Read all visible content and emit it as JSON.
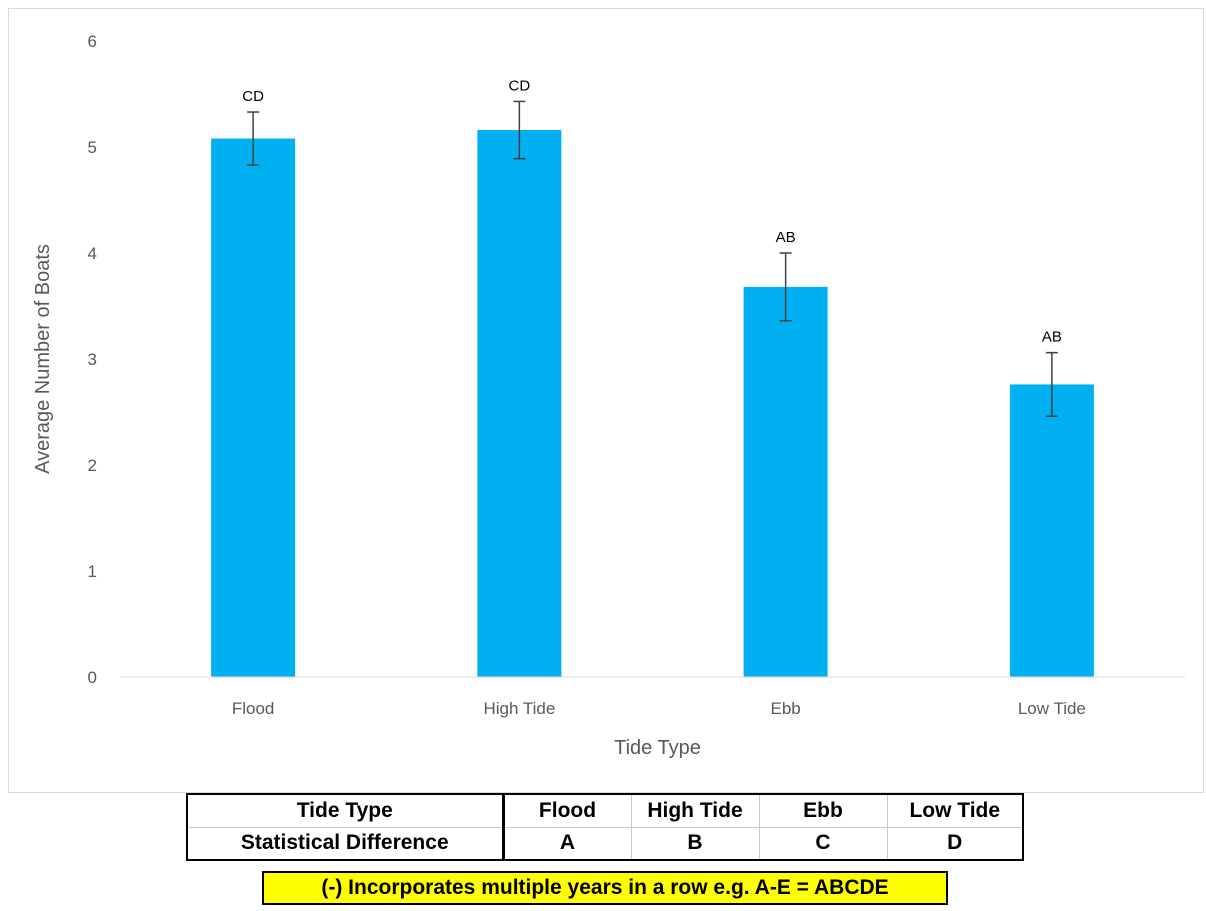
{
  "chart_data": {
    "type": "bar",
    "categories": [
      "Flood",
      "High Tide",
      "Ebb",
      "Low Tide"
    ],
    "values": [
      5.08,
      5.16,
      3.68,
      2.76
    ],
    "error": [
      0.25,
      0.27,
      0.32,
      0.3
    ],
    "annotations": [
      "CD",
      "CD",
      "AB",
      "AB"
    ],
    "xlabel": "Tide Type",
    "ylabel": "Average Number of Boats",
    "ylim": [
      0,
      6
    ],
    "yticks": [
      0,
      1,
      2,
      3,
      4,
      5,
      6
    ],
    "grid": false,
    "bar_color": "#00b0f0"
  },
  "table": {
    "rows": [
      [
        "Tide Type",
        "Flood",
        "High Tide",
        "Ebb",
        "Low Tide"
      ],
      [
        "Statistical Difference",
        "A",
        "B",
        "C",
        "D"
      ]
    ]
  },
  "note": "(-) Incorporates multiple years in a row e.g. A-E = ABCDE"
}
